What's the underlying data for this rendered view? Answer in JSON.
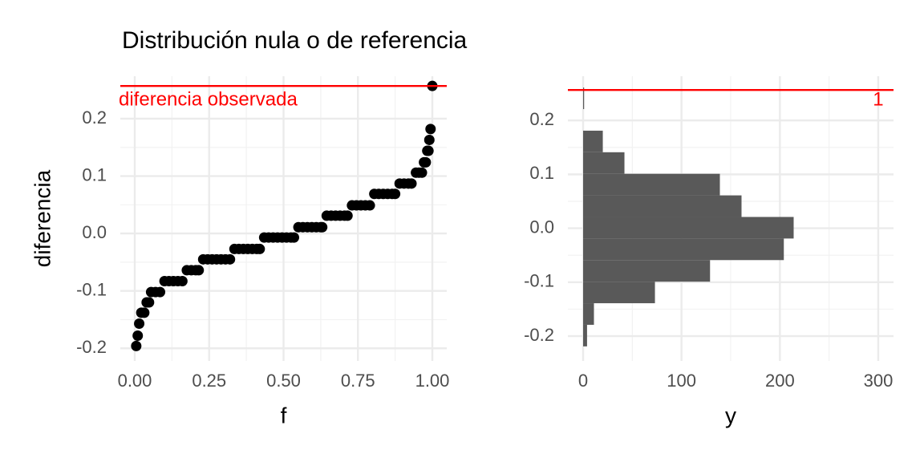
{
  "chart_data": [
    {
      "type": "scatter",
      "title": "Distribución nula o de referencia",
      "x_label": "f",
      "y_label": "diferencia",
      "color": "#000000",
      "x": [
        0.005,
        0.01,
        0.015,
        0.022,
        0.032,
        0.04,
        0.048,
        0.055,
        0.07,
        0.085,
        0.1,
        0.115,
        0.13,
        0.145,
        0.16,
        0.175,
        0.19,
        0.205,
        0.215,
        0.23,
        0.245,
        0.26,
        0.275,
        0.29,
        0.305,
        0.32,
        0.335,
        0.35,
        0.365,
        0.38,
        0.395,
        0.41,
        0.42,
        0.435,
        0.45,
        0.465,
        0.48,
        0.495,
        0.51,
        0.525,
        0.535,
        0.55,
        0.565,
        0.58,
        0.595,
        0.61,
        0.625,
        0.63,
        0.645,
        0.66,
        0.675,
        0.69,
        0.705,
        0.715,
        0.73,
        0.745,
        0.76,
        0.775,
        0.79,
        0.805,
        0.82,
        0.835,
        0.85,
        0.865,
        0.875,
        0.89,
        0.905,
        0.92,
        0.93,
        0.945,
        0.955,
        0.965,
        0.972,
        0.978,
        0.983,
        0.987,
        0.99,
        0.994,
        1.0
      ],
      "y": [
        -0.196,
        -0.178,
        -0.157,
        -0.138,
        -0.138,
        -0.12,
        -0.12,
        -0.102,
        -0.102,
        -0.102,
        -0.083,
        -0.083,
        -0.083,
        -0.083,
        -0.083,
        -0.064,
        -0.064,
        -0.064,
        -0.064,
        -0.045,
        -0.045,
        -0.045,
        -0.045,
        -0.045,
        -0.045,
        -0.045,
        -0.027,
        -0.027,
        -0.027,
        -0.027,
        -0.027,
        -0.027,
        -0.027,
        -0.007,
        -0.007,
        -0.007,
        -0.007,
        -0.007,
        -0.007,
        -0.007,
        -0.007,
        0.011,
        0.011,
        0.011,
        0.011,
        0.011,
        0.011,
        0.011,
        0.031,
        0.031,
        0.031,
        0.031,
        0.031,
        0.031,
        0.049,
        0.049,
        0.049,
        0.049,
        0.049,
        0.069,
        0.069,
        0.069,
        0.069,
        0.069,
        0.069,
        0.087,
        0.087,
        0.087,
        0.087,
        0.106,
        0.106,
        0.106,
        0.124,
        0.124,
        0.144,
        0.144,
        0.163,
        0.182,
        0.257
      ],
      "hline": {
        "value": 0.257,
        "color": "#ff0000",
        "label": "diferencia observada"
      },
      "xlim": [
        -0.0485,
        1.0485
      ],
      "ylim": [
        -0.222,
        0.274
      ],
      "xticks": [
        {
          "value": 0,
          "label": "0.00"
        },
        {
          "value": 0.25,
          "label": "0.25"
        },
        {
          "value": 0.5,
          "label": "0.50"
        },
        {
          "value": 0.75,
          "label": "0.75"
        },
        {
          "value": 1,
          "label": "1.00"
        }
      ],
      "yticks": [
        -0.2,
        -0.1,
        {
          "value": 0,
          "label": "0.0"
        },
        0.1,
        0.2
      ],
      "grid": true,
      "minor_grid": true
    },
    {
      "type": "histogram",
      "orientation": "horizontal",
      "x_label": "y",
      "color": "#595959",
      "bins": [
        -0.219,
        -0.179,
        -0.139,
        -0.099,
        -0.059,
        -0.019,
        0.021,
        0.061,
        0.101,
        0.141,
        0.181,
        0.221,
        0.261
      ],
      "values": [
        4,
        11,
        73,
        129,
        204,
        214,
        161,
        139,
        42,
        20,
        0,
        1
      ],
      "hline": {
        "value": 0.2565,
        "color": "#ff0000",
        "label": "1"
      },
      "xlim": [
        -15.5,
        315.5
      ],
      "ylim": [
        -0.246,
        0.282
      ],
      "xticks": [
        0,
        100,
        200,
        300
      ],
      "yticks": [
        -0.2,
        -0.1,
        {
          "value": 0,
          "label": "0.0"
        },
        0.1,
        0.2
      ],
      "grid": true,
      "minor_grid": true
    }
  ]
}
